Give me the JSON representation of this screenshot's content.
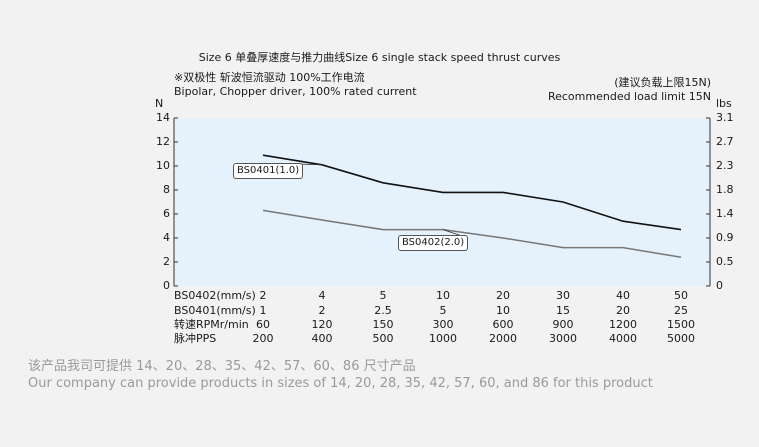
{
  "chart_data": {
    "type": "line",
    "title": "Size 6 单叠厚速度与推力曲线Size 6 single stack speed thrust curves",
    "notes": [
      "※双极性 斩波恒流驱动 100%工作电流",
      "Bipolar, Chopper driver, 100% rated current"
    ],
    "limit_note": [
      "(建议负载上限15N)",
      "Recommended load limit 15N"
    ],
    "ylabel_left": "N",
    "ylabel_right": "lbs",
    "ylim_left": [
      0,
      14
    ],
    "yticks_left": [
      "0",
      "2",
      "4",
      "6",
      "8",
      "10",
      "12",
      "14"
    ],
    "yticks_right": [
      "0",
      "0.5",
      "0.9",
      "1.4",
      "1.8",
      "2.3",
      "2.7",
      "3.1"
    ],
    "grid": false,
    "columns": 8,
    "series": [
      {
        "name": "BS0401(1.0)",
        "color": "#111111",
        "values": [
          10.9,
          10.1,
          8.6,
          7.8,
          7.8,
          7.0,
          5.4,
          4.7
        ]
      },
      {
        "name": "BS0402(2.0)",
        "color": "#777777",
        "values": [
          6.3,
          5.5,
          4.7,
          4.7,
          4.0,
          3.2,
          3.2,
          2.4
        ]
      }
    ],
    "table": [
      {
        "label": "BS0402(mm/s)",
        "values": [
          "2",
          "4",
          "5",
          "10",
          "20",
          "30",
          "40",
          "50"
        ]
      },
      {
        "label": "BS0401(mm/s)",
        "values": [
          "1",
          "2",
          "2.5",
          "5",
          "10",
          "15",
          "20",
          "25"
        ]
      },
      {
        "label": "转速RPMr/min",
        "values": [
          "60",
          "120",
          "150",
          "300",
          "600",
          "900",
          "1200",
          "1500"
        ]
      },
      {
        "label": "脉冲PPS",
        "values": [
          "200",
          "400",
          "500",
          "1000",
          "2000",
          "3000",
          "4000",
          "5000"
        ]
      }
    ]
  },
  "footer": {
    "line_cn": "该产品我司可提供 14、20、28、35、42、57、60、86 尺寸产品",
    "line_en": "Our company can provide products in sizes of 14, 20, 28, 35, 42, 57, 60, and 86 for this product"
  },
  "colors": {
    "plot_bg": "#e6f2fb",
    "axis": "#333333",
    "footer_text": "#9a9a9a"
  }
}
